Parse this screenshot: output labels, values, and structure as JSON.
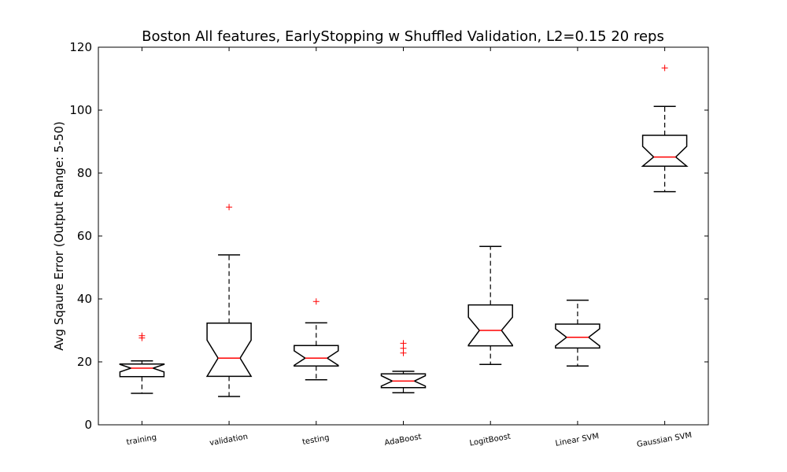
{
  "chart_data": {
    "type": "box",
    "title": "Boston All features, EarlyStopping w Shuffled Validation, L2=0.15 20 reps",
    "xlabel": "",
    "ylabel": "Avg Sqaure Error (Output Range: 5-50)",
    "ylim": [
      0,
      120
    ],
    "yticks": [
      "0",
      "20",
      "40",
      "60",
      "80",
      "100",
      "120"
    ],
    "grid": false,
    "notched": true,
    "colors": {
      "box": "#000000",
      "median": "#ff0000",
      "outlier": "#ff0000"
    },
    "categories": [
      "training",
      "validation",
      "testing",
      "AdaBoost",
      "LogitBoost",
      "Linear SVM",
      "Gaussian SVM"
    ],
    "boxes": [
      {
        "whisker_low": 10.0,
        "q1": 15.3,
        "median": 18.0,
        "q3": 19.3,
        "whisker_high": 20.3,
        "notch_low": 16.8,
        "notch_high": 19.2,
        "outliers": [
          27.6,
          28.3
        ]
      },
      {
        "whisker_low": 9.0,
        "q1": 15.4,
        "median": 21.2,
        "q3": 32.3,
        "whisker_high": 54.0,
        "notch_low": 15.4,
        "notch_high": 26.9,
        "outliers": [
          69.2
        ]
      },
      {
        "whisker_low": 14.3,
        "q1": 18.7,
        "median": 21.2,
        "q3": 25.2,
        "whisker_high": 32.4,
        "notch_low": 18.9,
        "notch_high": 23.5,
        "outliers": [
          39.2
        ]
      },
      {
        "whisker_low": 10.2,
        "q1": 11.8,
        "median": 13.9,
        "q3": 16.2,
        "whisker_high": 17.0,
        "notch_low": 12.3,
        "notch_high": 15.6,
        "outliers": [
          22.8,
          24.3,
          25.9
        ]
      },
      {
        "whisker_low": 19.2,
        "q1": 25.1,
        "median": 30.0,
        "q3": 38.1,
        "whisker_high": 56.7,
        "notch_low": 25.3,
        "notch_high": 34.2,
        "outliers": []
      },
      {
        "whisker_low": 18.7,
        "q1": 24.4,
        "median": 27.8,
        "q3": 32.0,
        "whisker_high": 39.6,
        "notch_low": 25.1,
        "notch_high": 30.5,
        "outliers": []
      },
      {
        "whisker_low": 74.1,
        "q1": 82.2,
        "median": 85.1,
        "q3": 92.0,
        "whisker_high": 101.2,
        "notch_low": 82.2,
        "notch_high": 88.5,
        "outliers": [
          113.4
        ]
      }
    ]
  }
}
